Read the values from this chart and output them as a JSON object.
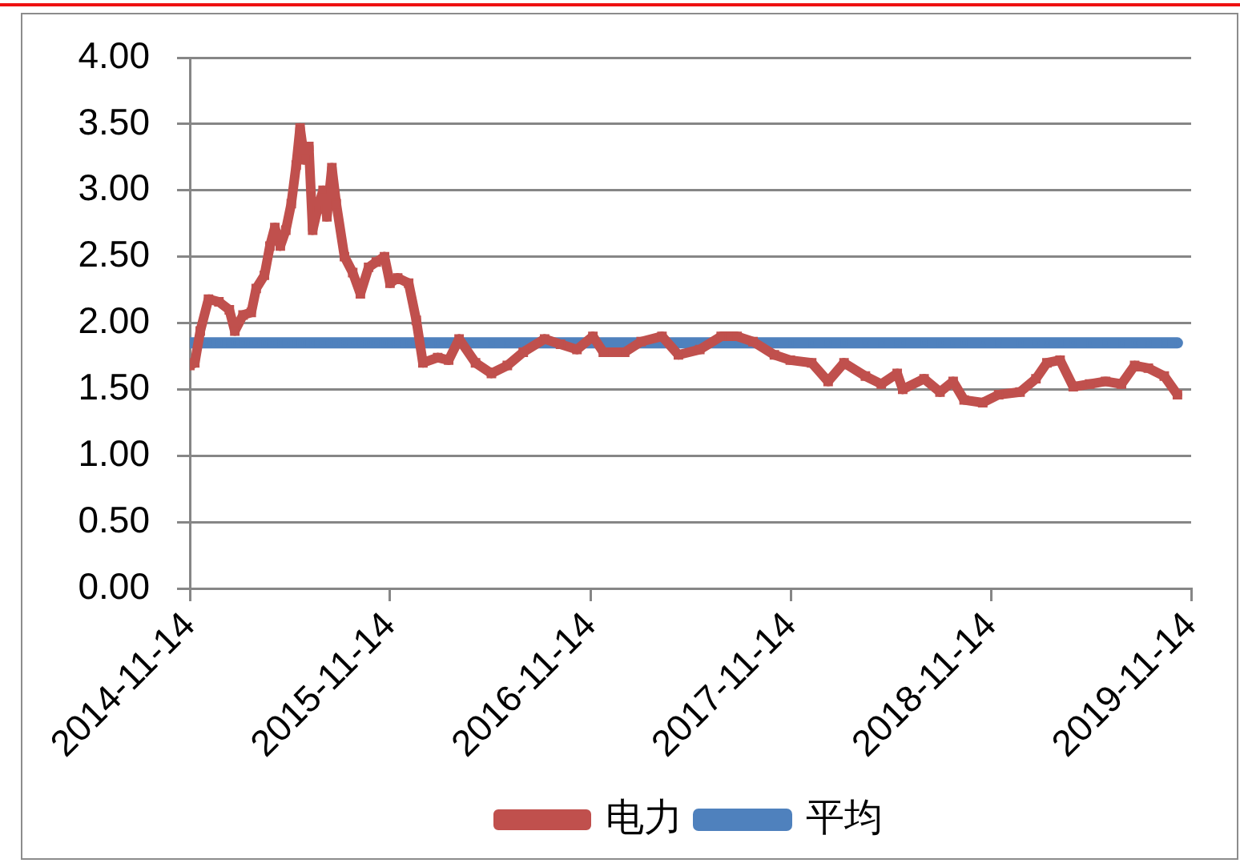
{
  "chart_data": {
    "type": "line",
    "x": [
      "2014-11-14",
      "2014-11-23",
      "2014-12-03",
      "2014-12-18",
      "2015-01-06",
      "2015-01-25",
      "2015-02-04",
      "2015-02-19",
      "2015-03-06",
      "2015-03-15",
      "2015-03-30",
      "2015-04-09",
      "2015-04-18",
      "2015-04-28",
      "2015-05-08",
      "2015-05-18",
      "2015-05-27",
      "2015-06-03",
      "2015-06-11",
      "2015-06-19",
      "2015-06-26",
      "2015-07-05",
      "2015-07-15",
      "2015-07-22",
      "2015-07-31",
      "2015-08-08",
      "2015-08-23",
      "2015-09-07",
      "2015-09-21",
      "2015-10-06",
      "2015-10-20",
      "2015-11-04",
      "2015-11-14",
      "2015-11-28",
      "2015-12-18",
      "2016-01-01",
      "2016-01-13",
      "2016-02-09",
      "2016-02-29",
      "2016-03-19",
      "2016-04-18",
      "2016-05-17",
      "2016-06-15",
      "2016-07-14",
      "2016-08-22",
      "2016-09-20",
      "2016-10-20",
      "2016-11-18",
      "2016-12-07",
      "2017-01-15",
      "2017-02-14",
      "2017-03-24",
      "2017-04-23",
      "2017-06-01",
      "2017-07-10",
      "2017-08-08",
      "2017-09-06",
      "2017-10-15",
      "2017-11-13",
      "2017-12-22",
      "2018-01-21",
      "2018-02-19",
      "2018-03-30",
      "2018-04-28",
      "2018-05-27",
      "2018-06-06",
      "2018-07-15",
      "2018-08-13",
      "2018-09-06",
      "2018-09-26",
      "2018-10-30",
      "2018-11-28",
      "2019-01-06",
      "2019-02-04",
      "2019-02-24",
      "2019-03-20",
      "2019-04-13",
      "2019-05-13",
      "2019-06-11",
      "2019-07-10",
      "2019-08-03",
      "2019-08-28",
      "2019-09-26",
      "2019-10-20"
    ],
    "series": [
      {
        "name": "电力",
        "color": "#c0504d",
        "values": [
          1.68,
          1.7,
          1.94,
          2.18,
          2.16,
          2.1,
          1.94,
          2.06,
          2.08,
          2.26,
          2.36,
          2.58,
          2.72,
          2.58,
          2.7,
          2.9,
          3.19,
          3.47,
          3.23,
          3.33,
          2.7,
          2.86,
          3.0,
          2.8,
          3.17,
          2.9,
          2.5,
          2.38,
          2.22,
          2.42,
          2.46,
          2.5,
          2.3,
          2.34,
          2.3,
          2.02,
          1.7,
          1.74,
          1.72,
          1.88,
          1.7,
          1.62,
          1.68,
          1.78,
          1.88,
          1.84,
          1.8,
          1.9,
          1.78,
          1.78,
          1.86,
          1.9,
          1.76,
          1.8,
          1.9,
          1.9,
          1.86,
          1.76,
          1.72,
          1.7,
          1.56,
          1.7,
          1.6,
          1.54,
          1.62,
          1.5,
          1.58,
          1.48,
          1.56,
          1.42,
          1.4,
          1.46,
          1.48,
          1.58,
          1.7,
          1.72,
          1.52,
          1.54,
          1.56,
          1.54,
          1.68,
          1.66,
          1.6,
          1.46
        ]
      },
      {
        "name": "平均",
        "color": "#4f81bd",
        "values": [
          1.85,
          1.85,
          1.85,
          1.85,
          1.85,
          1.85,
          1.85,
          1.85,
          1.85,
          1.85,
          1.85,
          1.85,
          1.85,
          1.85,
          1.85,
          1.85,
          1.85,
          1.85,
          1.85,
          1.85,
          1.85,
          1.85,
          1.85,
          1.85,
          1.85,
          1.85,
          1.85,
          1.85,
          1.85,
          1.85,
          1.85,
          1.85,
          1.85,
          1.85,
          1.85,
          1.85,
          1.85,
          1.85,
          1.85,
          1.85,
          1.85,
          1.85,
          1.85,
          1.85,
          1.85,
          1.85,
          1.85,
          1.85,
          1.85,
          1.85,
          1.85,
          1.85,
          1.85,
          1.85,
          1.85,
          1.85,
          1.85,
          1.85,
          1.85,
          1.85,
          1.85,
          1.85,
          1.85,
          1.85,
          1.85,
          1.85,
          1.85,
          1.85,
          1.85,
          1.85,
          1.85,
          1.85,
          1.85,
          1.85,
          1.85,
          1.85,
          1.85,
          1.85,
          1.85,
          1.85,
          1.85,
          1.85,
          1.85,
          1.85
        ]
      }
    ],
    "xlim": [
      "2014-11-14",
      "2019-11-14"
    ],
    "xticks": [
      "2014-11-14",
      "2015-11-14",
      "2016-11-14",
      "2017-11-14",
      "2018-11-14",
      "2019-11-14"
    ],
    "ylim": [
      0,
      4
    ],
    "yticks": [
      {
        "value": 0,
        "label": "0.00"
      },
      {
        "value": 0.5,
        "label": "0.50"
      },
      {
        "value": 1,
        "label": "1.00"
      },
      {
        "value": 1.5,
        "label": "1.50"
      },
      {
        "value": 2,
        "label": "2.00"
      },
      {
        "value": 2.5,
        "label": "2.50"
      },
      {
        "value": 3,
        "label": "3.00"
      },
      {
        "value": 3.5,
        "label": "3.50"
      },
      {
        "value": 4,
        "label": "4.00"
      }
    ],
    "grid": "y",
    "legend": "bottom",
    "marker": "square"
  }
}
